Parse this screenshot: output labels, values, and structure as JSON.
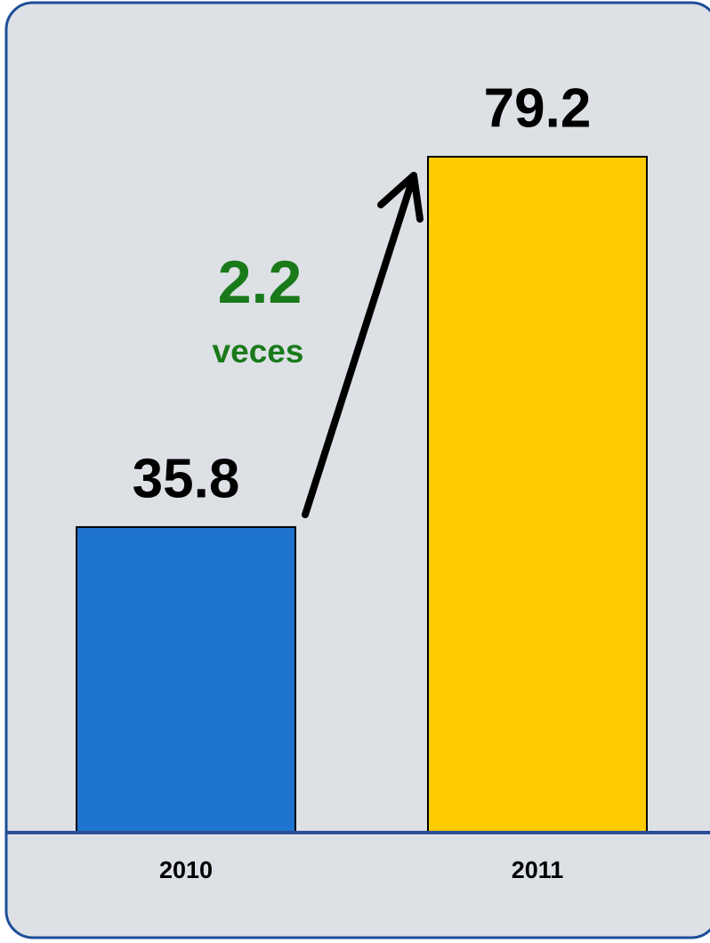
{
  "chart_data": {
    "type": "bar",
    "categories": [
      "2010",
      "2011"
    ],
    "values": [
      35.8,
      79.2
    ],
    "colors": [
      "#1f74cf",
      "#ffcc00"
    ],
    "annotation": {
      "text": "2.2",
      "subtext": "veces"
    }
  }
}
